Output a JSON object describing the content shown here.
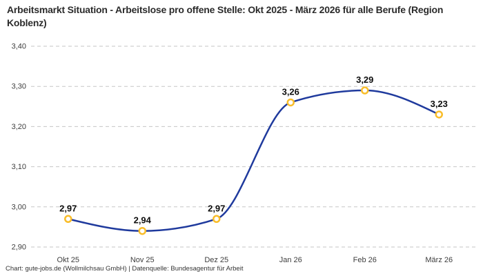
{
  "title": "Arbeitsmarkt Situation - Arbeitslose pro offene Stelle: Okt 2025 - März 2026 für alle Berufe (Region Koblenz)",
  "footer": "Chart: gute-jobs.de (Wollmilchsau GmbH) | Datenquelle: Bundesagentur für Arbeit",
  "colors": {
    "line": "#1f3a9d",
    "marker_stroke": "#f9bd2a",
    "marker_fill": "#ffffff",
    "grid": "#c6c6c6",
    "tick_label": "#3d3d3d",
    "point_label": "#0d0d0d",
    "title": "#2b2b2b",
    "footer": "#333333",
    "background": "#ffffff"
  },
  "chart_data": {
    "type": "line",
    "title": "Arbeitsmarkt Situation - Arbeitslose pro offene Stelle: Okt 2025 - März 2026 für alle Berufe (Region Koblenz)",
    "categories": [
      "Okt 25",
      "Nov 25",
      "Dez 25",
      "Jan 26",
      "Feb 26",
      "März 26"
    ],
    "values": [
      2.97,
      2.94,
      2.97,
      3.26,
      3.29,
      3.23
    ],
    "point_labels": [
      "2,97",
      "2,94",
      "2,97",
      "3,26",
      "3,29",
      "3,23"
    ],
    "xlabel": "",
    "ylabel": "",
    "ylim": [
      2.9,
      3.4
    ],
    "yticks": [
      2.9,
      3.0,
      3.1,
      3.2,
      3.3,
      3.4
    ],
    "ytick_labels": [
      "2,90",
      "3,00",
      "3,10",
      "3,20",
      "3,30",
      "3,40"
    ],
    "grid": "horizontal-dashed",
    "legend": "none",
    "curve": "smooth-monotone",
    "markers": "open-circle",
    "source": "Chart: gute-jobs.de (Wollmilchsau GmbH) | Datenquelle: Bundesagentur für Arbeit"
  }
}
